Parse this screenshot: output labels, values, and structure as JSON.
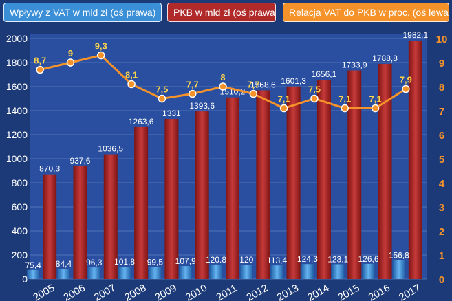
{
  "chart_data": {
    "type": "bar",
    "title": "",
    "categories": [
      "2005",
      "2006",
      "2007",
      "2008",
      "2009",
      "2010",
      "2011",
      "2012",
      "2013",
      "2014",
      "2015",
      "2016",
      "2017"
    ],
    "series": [
      {
        "name": "Wpływy z VAT w mld zł (oś prawa)",
        "type": "bar",
        "axis": "left",
        "color": "#3a8fd6",
        "values": [
          75.4,
          84.4,
          96.3,
          101.8,
          99.5,
          107.9,
          120.8,
          120,
          113.4,
          124.3,
          123.1,
          126.6,
          156.8
        ],
        "labels": [
          "75,4",
          "84,4",
          "96,3",
          "101,8",
          "99,5",
          "107,9",
          "120.8",
          "120",
          "113,4",
          "124,3",
          "123,1",
          "126,6",
          "156,8"
        ]
      },
      {
        "name": "PKB w mld zł (oś prawa)",
        "type": "bar",
        "axis": "left",
        "color": "#b02a2a",
        "values": [
          870.3,
          937.6,
          1036.5,
          1263.6,
          1331,
          1393.6,
          1510.2,
          1568.6,
          1601.3,
          1656.1,
          1733.9,
          1788.8,
          1982.1
        ],
        "labels": [
          "870,3",
          "937,6",
          "1036,5",
          "1263,6",
          "1331",
          "1393,6",
          "1510,2",
          "1568,6",
          "1601,3",
          "1656,1",
          "1733,9",
          "1788,8",
          "1982,1"
        ]
      },
      {
        "name": "Relacja VAT do PKB w proc. (oś lewa)",
        "type": "line",
        "axis": "right",
        "color": "#f5922a",
        "values": [
          8.7,
          9,
          9.3,
          8.1,
          7.5,
          7.7,
          8,
          7.7,
          7.1,
          7.5,
          7.1,
          7.1,
          7.9
        ],
        "labels": [
          "8,7",
          "9",
          "9,3",
          "8,1",
          "7,5",
          "7,7",
          "8",
          "7,7",
          "7,1",
          "7,5",
          "7,1",
          "7,1",
          "7,9"
        ]
      }
    ],
    "y_left": {
      "min": 0,
      "max": 2000,
      "ticks": [
        "0",
        "200",
        "400",
        "600",
        "800",
        "1000",
        "1200",
        "1400",
        "1600",
        "1800",
        "2000"
      ]
    },
    "y_right": {
      "min": 0,
      "max": 10,
      "ticks": [
        "0",
        "1",
        "2",
        "3",
        "4",
        "5",
        "6",
        "7",
        "8",
        "9",
        "10"
      ]
    },
    "grid": true,
    "legend_position": "top",
    "colors": {
      "background": "#1c3a78",
      "plot_background": "#2a4fa0",
      "grid": "#6f8ccb",
      "right_axis": "#f5922a"
    }
  }
}
